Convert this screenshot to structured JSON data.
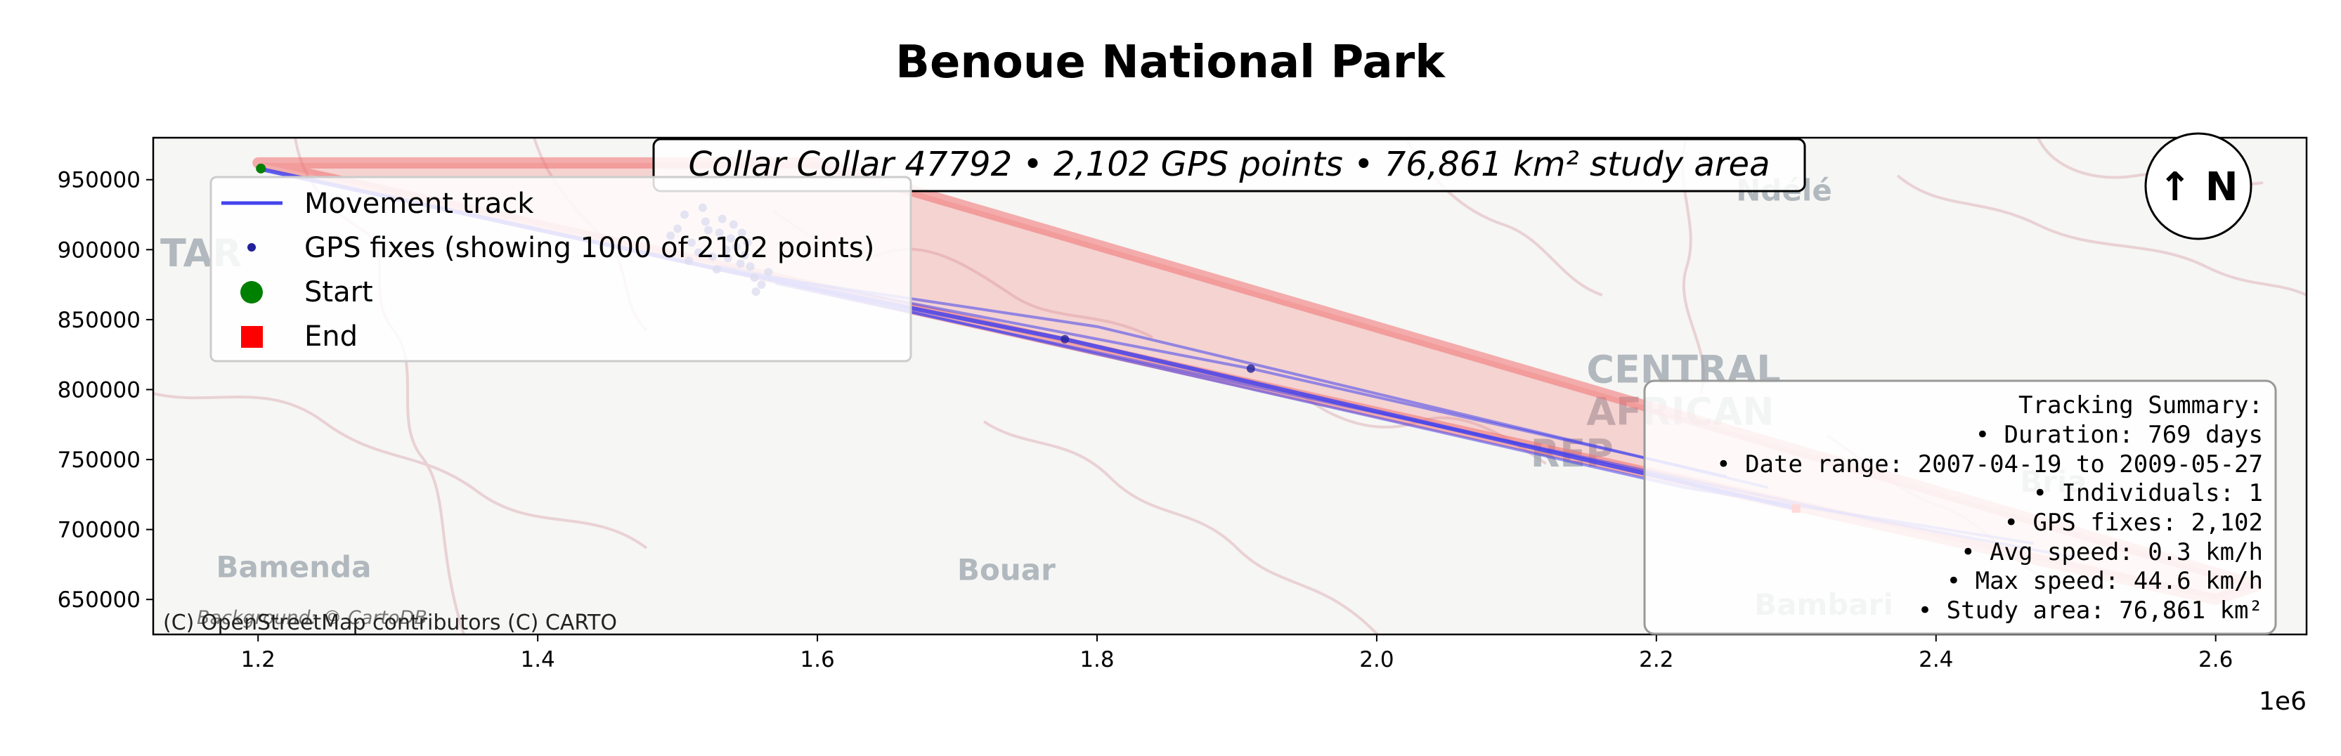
{
  "title": "Benoue National Park",
  "info_box": "Collar Collar 47792 • 2,102 GPS points • 76,861 km² study area",
  "north_arrow": "↑ N",
  "legend": [
    {
      "label": "Movement track",
      "color": "#4444ee",
      "marker": "line"
    },
    {
      "label": "GPS fixes (showing 1000 of 2102 points)",
      "color": "#22229a",
      "marker": "dot"
    },
    {
      "label": "Start",
      "color": "#008000",
      "marker": "circle"
    },
    {
      "label": "End",
      "color": "#ff0000",
      "marker": "square"
    }
  ],
  "summary": [
    "Tracking Summary:",
    "• Duration: 769 days",
    "• Date range: 2007-04-19 to 2009-05-27",
    "• Individuals: 1",
    "• GPS fixes: 2,102",
    "• Avg speed: 0.3 km/h",
    "• Max speed: 44.6 km/h",
    "• Study area: 76,861 km²"
  ],
  "attribution": "(C) OpenStreetMap contributors (C) CARTO",
  "attribution_background": "Background: © CartoDB",
  "basemap_labels": [
    {
      "text": "Bamenda",
      "x": 1170000,
      "y": 666000
    },
    {
      "text": "Bouar",
      "x": 1700000,
      "y": 664000
    },
    {
      "text": "CENTRAL",
      "x": 2150000,
      "y": 805000
    },
    {
      "text": "AFRICAN",
      "x": 2150000,
      "y": 775000
    },
    {
      "text": "REP",
      "x": 2110000,
      "y": 745000
    },
    {
      "text": "Ndélé",
      "x": 2257000,
      "y": 935000
    },
    {
      "text": "Bambari",
      "x": 2270000,
      "y": 639000
    },
    {
      "text": "Bria",
      "x": 2460000,
      "y": 727000
    },
    {
      "text": "TAR",
      "x": 1130000,
      "y": 888000
    }
  ],
  "chart_data": {
    "type": "line",
    "xlim": [
      1125000,
      2665000
    ],
    "ylim": [
      625000,
      980000
    ],
    "x_ticks": [
      1200000,
      1400000,
      1600000,
      1800000,
      2000000,
      2200000,
      2400000,
      2600000
    ],
    "x_tick_labels": [
      "1.2",
      "1.4",
      "1.6",
      "1.8",
      "2.0",
      "2.2",
      "2.4",
      "2.6"
    ],
    "x_offset_label": "1e6",
    "y_ticks": [
      650000,
      700000,
      750000,
      800000,
      850000,
      900000,
      950000
    ],
    "y_tick_labels": [
      "650000",
      "700000",
      "750000",
      "800000",
      "850000",
      "900000",
      "950000"
    ],
    "study_area": [
      [
        1200000,
        962000
      ],
      [
        1600000,
        962000
      ],
      [
        2630000,
        660000
      ],
      [
        2600000,
        650000
      ],
      [
        1200000,
        962000
      ]
    ],
    "track_segments": [
      [
        [
          1200000,
          958000
        ],
        [
          1530000,
          886000
        ],
        [
          1777000,
          836000
        ],
        [
          2300000,
          715000
        ]
      ],
      [
        [
          1530000,
          888000
        ],
        [
          1910000,
          815000
        ],
        [
          2250000,
          738000
        ]
      ],
      [
        [
          1560000,
          880000
        ],
        [
          2220000,
          730000
        ],
        [
          2470000,
          690000
        ]
      ],
      [
        [
          1540000,
          884000
        ],
        [
          1800000,
          845000
        ],
        [
          2280000,
          730000
        ]
      ],
      [
        [
          1570000,
          876000
        ],
        [
          2360000,
          706000
        ],
        [
          2500000,
          680000
        ]
      ]
    ],
    "gps_points": [
      [
        1202000,
        958000
      ],
      [
        1777000,
        836000
      ],
      [
        1910000,
        815000
      ],
      [
        1500000,
        915000
      ],
      [
        1510000,
        905000
      ],
      [
        1520000,
        920000
      ],
      [
        1525000,
        895000
      ],
      [
        1530000,
        912000
      ],
      [
        1535000,
        900000
      ],
      [
        1540000,
        918000
      ],
      [
        1545000,
        890000
      ],
      [
        1550000,
        905000
      ],
      [
        1555000,
        880000
      ],
      [
        1505000,
        925000
      ],
      [
        1515000,
        898000
      ],
      [
        1528000,
        886000
      ],
      [
        1538000,
        908000
      ],
      [
        1548000,
        896000
      ],
      [
        1560000,
        875000
      ],
      [
        1518000,
        930000
      ],
      [
        1532000,
        922000
      ],
      [
        1542000,
        902000
      ],
      [
        1552000,
        888000
      ],
      [
        1495000,
        910000
      ],
      [
        1508000,
        892000
      ],
      [
        1522000,
        914000
      ],
      [
        1536000,
        894000
      ],
      [
        1546000,
        912000
      ],
      [
        1556000,
        870000
      ],
      [
        1565000,
        884000
      ]
    ],
    "start": [
      1202000,
      958000
    ],
    "end": [
      2300000,
      715000
    ]
  }
}
